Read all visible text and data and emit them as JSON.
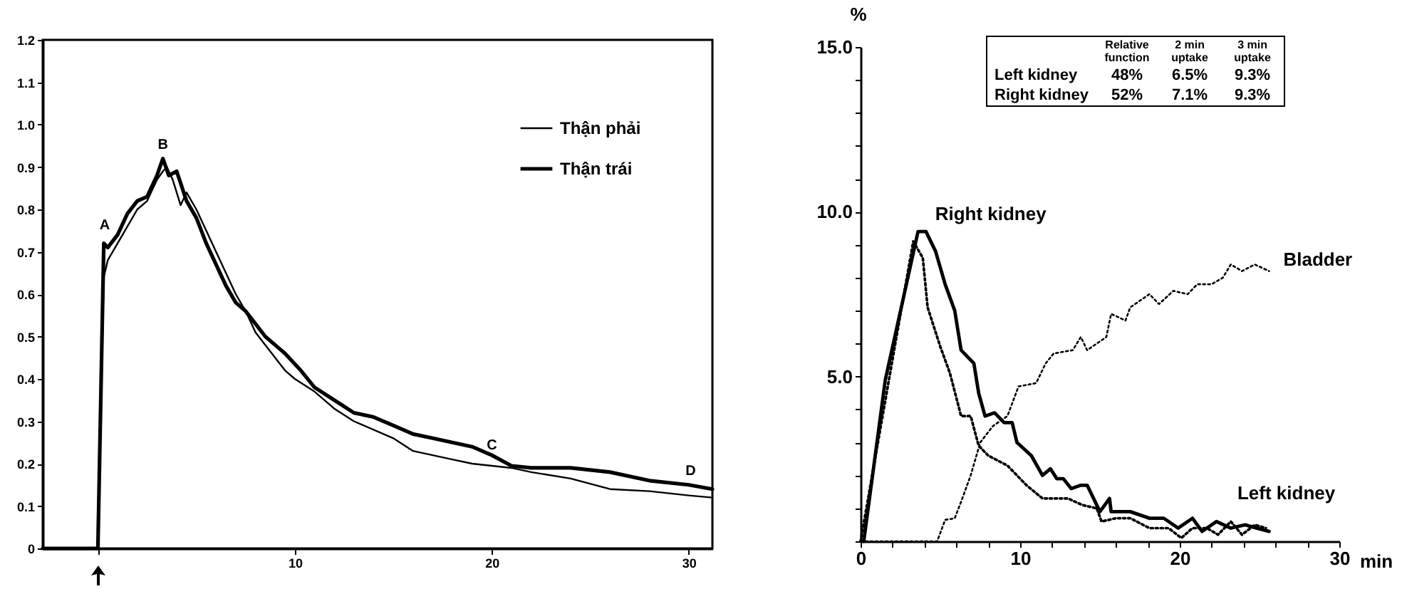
{
  "chart_data": [
    {
      "type": "line",
      "xlim": [
        -2.8,
        31.2
      ],
      "ylim": [
        0,
        1.2
      ],
      "xticks": [
        {
          "value": 0,
          "label": null
        },
        10,
        20,
        30
      ],
      "yticks": [
        0,
        0.1,
        0.2,
        0.3,
        0.4,
        0.5,
        0.6,
        0.7,
        0.8,
        0.9,
        {
          "value": 1,
          "label": "1.0"
        },
        1.1,
        1.2
      ],
      "grid": false,
      "legend": "top right",
      "line_style": "solid",
      "series": [
        {
          "name": "Thận phải",
          "color": "#000000",
          "x": [
            -2.8,
            0,
            0.3,
            0.5,
            1,
            1.5,
            2,
            2.5,
            3,
            3.3,
            3.5,
            3.8,
            4.2,
            4.5,
            5,
            5.5,
            6,
            6.5,
            7,
            7.5,
            8,
            8.5,
            9,
            9.5,
            10,
            11,
            12,
            13,
            14,
            15,
            16,
            17,
            18,
            19,
            20,
            21,
            22,
            24,
            26,
            28,
            30,
            31.2
          ],
          "values": [
            0,
            0,
            0.64,
            0.68,
            0.72,
            0.76,
            0.8,
            0.82,
            0.87,
            0.89,
            0.9,
            0.87,
            0.81,
            0.84,
            0.8,
            0.75,
            0.7,
            0.65,
            0.6,
            0.56,
            0.51,
            0.48,
            0.45,
            0.42,
            0.4,
            0.37,
            0.33,
            0.3,
            0.28,
            0.26,
            0.23,
            0.22,
            0.21,
            0.2,
            0.195,
            0.19,
            0.18,
            0.165,
            0.14,
            0.135,
            0.125,
            0.12
          ]
        },
        {
          "name": "Thận trái",
          "color": "#000000",
          "x": [
            -2.8,
            0,
            0.3,
            0.5,
            1,
            1.5,
            2,
            2.5,
            3,
            3.3,
            3.6,
            4,
            4.5,
            5,
            5.5,
            6,
            6.5,
            7,
            7.5,
            8,
            8.5,
            9,
            9.5,
            10.3,
            11,
            12,
            13,
            14,
            15,
            16,
            17,
            18,
            19,
            20,
            21,
            22,
            24,
            26,
            28,
            30,
            31.2
          ],
          "values": [
            0,
            0,
            0.72,
            0.71,
            0.74,
            0.79,
            0.82,
            0.83,
            0.88,
            0.92,
            0.88,
            0.89,
            0.82,
            0.78,
            0.72,
            0.67,
            0.62,
            0.58,
            0.56,
            0.53,
            0.5,
            0.48,
            0.46,
            0.42,
            0.38,
            0.35,
            0.32,
            0.31,
            0.29,
            0.27,
            0.26,
            0.25,
            0.24,
            0.22,
            0.195,
            0.19,
            0.19,
            0.18,
            0.16,
            0.15,
            0.14
          ]
        }
      ],
      "annotations": [
        {
          "text": "A",
          "x": 0.35,
          "y": 0.73
        },
        {
          "text": "B",
          "x": 3.3,
          "y": 0.92
        },
        {
          "text": "C",
          "x": 20,
          "y": 0.21
        },
        {
          "text": "D",
          "x": 30.1,
          "y": 0.15
        }
      ]
    },
    {
      "type": "line",
      "xlim": [
        0,
        30
      ],
      "ylim": [
        0,
        15
      ],
      "xlabel": "min",
      "ylabel": "%",
      "xticks": [
        0,
        {
          "value": 2,
          "label": null
        },
        {
          "value": 4,
          "label": null
        },
        {
          "value": 6,
          "label": null
        },
        {
          "value": 8,
          "label": null
        },
        10,
        {
          "value": 12,
          "label": null
        },
        {
          "value": 14,
          "label": null
        },
        {
          "value": 16,
          "label": null
        },
        {
          "value": 18,
          "label": null
        },
        20,
        {
          "value": 22,
          "label": null
        },
        {
          "value": 24,
          "label": null
        },
        {
          "value": 26,
          "label": null
        },
        {
          "value": 28,
          "label": null
        },
        30
      ],
      "yticks": [
        {
          "value": 0,
          "label": null
        },
        {
          "value": 1,
          "label": null
        },
        {
          "value": 2,
          "label": null
        },
        {
          "value": 3,
          "label": null
        },
        {
          "value": 4,
          "label": null
        },
        {
          "value": 5,
          "label": "5.0"
        },
        {
          "value": 6,
          "label": null
        },
        {
          "value": 7,
          "label": null
        },
        {
          "value": 8,
          "label": null
        },
        {
          "value": 9,
          "label": null
        },
        {
          "value": 10,
          "label": "10.0"
        },
        {
          "value": 11,
          "label": null
        },
        {
          "value": 12,
          "label": null
        },
        {
          "value": 13,
          "label": null
        },
        {
          "value": 14,
          "label": null
        },
        {
          "value": 15,
          "label": "15.0"
        }
      ],
      "grid": false,
      "series": [
        {
          "name": "Right kidney",
          "color": "#000000",
          "line_style": "solid",
          "x": [
            0.2,
            1.55,
            3.6,
            4.1,
            4.7,
            5.3,
            5.9,
            6.3,
            7.1,
            7.4,
            7.8,
            8.4,
            9.0,
            9.5,
            9.8,
            10.7,
            11.4,
            11.9,
            12.3,
            12.7,
            13.2,
            13.8,
            14.2,
            15.0,
            15.6,
            15.7,
            16.9,
            18.1,
            19.0,
            19.9,
            20.8,
            21.4,
            22.3,
            23.2,
            24.1,
            24.8,
            25.6
          ],
          "values": [
            0,
            4.9,
            9.4,
            9.4,
            8.8,
            7.8,
            7.0,
            5.8,
            5.4,
            4.5,
            3.8,
            3.9,
            3.6,
            3.6,
            3.0,
            2.6,
            2.0,
            2.2,
            1.9,
            1.9,
            1.6,
            1.7,
            1.7,
            0.9,
            1.3,
            0.9,
            0.9,
            0.7,
            0.7,
            0.4,
            0.7,
            0.3,
            0.6,
            0.4,
            0.5,
            0.4,
            0.3
          ]
        },
        {
          "name": "Left kidney",
          "color": "#000000",
          "line_style": "dotted",
          "x": [
            0,
            3.3,
            3.9,
            4.2,
            5.0,
            5.6,
            6.3,
            6.9,
            7.4,
            8.0,
            9.2,
            9.8,
            10.4,
            11.4,
            12.1,
            13.0,
            13.9,
            14.8,
            15.1,
            16.0,
            16.9,
            18.1,
            19.3,
            20.1,
            20.8,
            21.7,
            22.4,
            23.2,
            23.9,
            24.7,
            25.4
          ],
          "values": [
            0,
            9.1,
            8.6,
            7.1,
            5.9,
            5.1,
            3.8,
            3.8,
            2.9,
            2.6,
            2.3,
            2.0,
            1.7,
            1.3,
            1.3,
            1.3,
            1.1,
            1.0,
            0.6,
            0.7,
            0.7,
            0.4,
            0.4,
            0.1,
            0.4,
            0.4,
            0.2,
            0.6,
            0.2,
            0.5,
            0.4
          ]
        },
        {
          "name": "Bladder",
          "color": "#000000",
          "line_style": "dotted",
          "x": [
            0,
            4.8,
            5.3,
            5.9,
            6.3,
            6.9,
            7.5,
            8.3,
            9.2,
            9.9,
            11.0,
            11.6,
            12.1,
            13.3,
            13.8,
            14.2,
            15.4,
            15.7,
            16.6,
            16.9,
            18.1,
            18.7,
            19.6,
            20.5,
            21.1,
            22.0,
            22.7,
            23.2,
            23.9,
            24.7,
            25.6
          ],
          "values": [
            0,
            0,
            0.65,
            0.7,
            1.2,
            2.0,
            3.0,
            3.5,
            3.8,
            4.7,
            4.8,
            5.4,
            5.7,
            5.8,
            6.2,
            5.8,
            6.2,
            6.9,
            6.7,
            7.1,
            7.5,
            7.2,
            7.6,
            7.5,
            7.8,
            7.8,
            8.0,
            8.4,
            8.2,
            8.4,
            8.2
          ]
        }
      ],
      "annotations": [
        "Relative function",
        "2 min uptake",
        "3 min uptake",
        "Left kidney",
        "48%",
        "6.5%",
        "9.3%",
        "Right kidney",
        "52%",
        "7.1%",
        "9.3%"
      ]
    }
  ]
}
